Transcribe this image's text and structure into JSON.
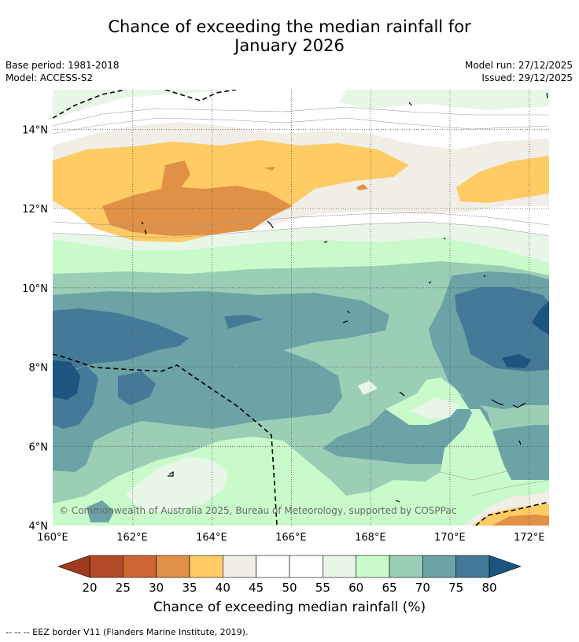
{
  "title_line1": "Chance of exceeding the median rainfall for",
  "title_line2": "January 2026",
  "base_period": "Base period: 1981-2018",
  "model": "Model: ACCESS-S2",
  "model_run": "Model run: 27/12/2025",
  "issued": "Issued: 29/12/2025",
  "copyright": "© Commonwealth of Australia 2025, Bureau of Meteorology, supported by COSPPac",
  "colorbar_title": "Chance of exceeding median rainfall (%)",
  "footnote": "--  --  -- EEZ border V11 (Flanders Marine Institute, 2019).",
  "chart_data": {
    "type": "heatmap",
    "lon_range": [
      160,
      172.5
    ],
    "lat_range": [
      4,
      15
    ],
    "x_ticks": [
      "160°E",
      "162°E",
      "164°E",
      "166°E",
      "168°E",
      "170°E",
      "172°E"
    ],
    "y_ticks": [
      "4°N",
      "6°N",
      "8°N",
      "10°N",
      "12°N",
      "14°N"
    ],
    "colorbar": {
      "boundaries": [
        20,
        25,
        30,
        35,
        40,
        45,
        50,
        55,
        60,
        65,
        70,
        75,
        80
      ],
      "labels": [
        "20",
        "25",
        "30",
        "35",
        "40",
        "45",
        "50",
        "55",
        "60",
        "65",
        "70",
        "75",
        "80"
      ],
      "low_extend_color": "#9e3a1e",
      "high_extend_color": "#1c5580",
      "colors": [
        "#b24a27",
        "#cc6633",
        "#e09145",
        "#fecb65",
        "#f1ede7",
        "#ffffff",
        "#ffffff",
        "#e8f6e8",
        "#c9fbca",
        "#9acfb6",
        "#6ba3a6",
        "#447a98"
      ]
    }
  }
}
